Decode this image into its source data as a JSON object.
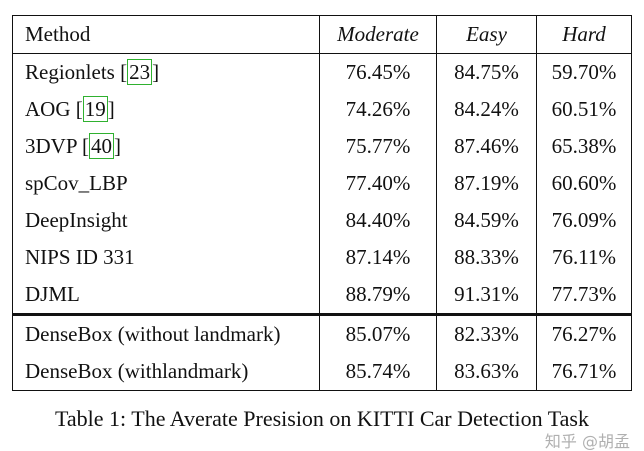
{
  "table": {
    "headers": [
      "Method",
      "Moderate",
      "Easy",
      "Hard"
    ],
    "rows": [
      {
        "method": "Regionlets ",
        "ref": "23",
        "close": "",
        "moderate": "76.45%",
        "easy": "84.75%",
        "hard": "59.70%"
      },
      {
        "method": "AOG ",
        "ref": "19",
        "moderate": "74.26%",
        "easy": "84.24%",
        "hard": "60.51%"
      },
      {
        "method": "3DVP ",
        "ref": "40",
        "moderate": "75.77%",
        "easy": "87.46%",
        "hard": "65.38%"
      },
      {
        "method": "spCov_LBP",
        "moderate": "77.40%",
        "easy": "87.19%",
        "hard": "60.60%"
      },
      {
        "method": "DeepInsight",
        "moderate": "84.40%",
        "easy": "84.59%",
        "hard": "76.09%"
      },
      {
        "method": "NIPS ID 331",
        "moderate": "87.14%",
        "easy": "88.33%",
        "hard": "76.11%"
      },
      {
        "method": "DJML",
        "moderate": "88.79%",
        "easy": "91.31%",
        "hard": "77.73%"
      },
      {
        "method": "DenseBox (without landmark)",
        "moderate": "85.07%",
        "easy": "82.33%",
        "hard": "76.27%"
      },
      {
        "method": "DenseBox (withlandmark)",
        "moderate": "85.74%",
        "easy": "83.63%",
        "hard": "76.71%"
      }
    ]
  },
  "caption": "Table 1: The Averate Presision on KITTI Car Detection Task",
  "watermark": "知乎 @胡孟"
}
